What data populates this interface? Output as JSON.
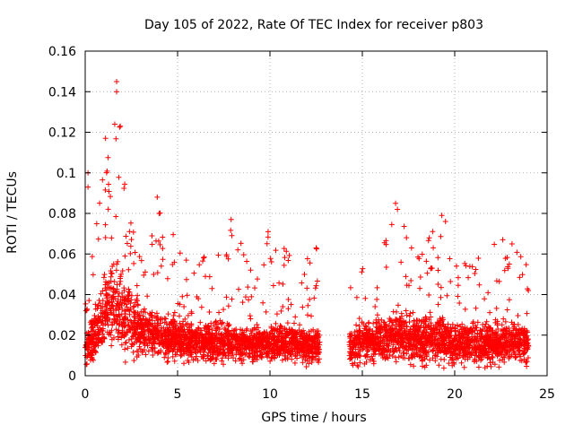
{
  "chart_data": {
    "type": "scatter",
    "title": "Day 105 of 2022, Rate Of TEC Index for receiver p803",
    "xlabel": "GPS time / hours",
    "ylabel": "ROTI / TECUs",
    "xlim": [
      0,
      25
    ],
    "ylim": [
      0,
      0.16
    ],
    "x_ticks": [
      0,
      5,
      10,
      15,
      20,
      25
    ],
    "x_tick_labels": [
      "0",
      "5",
      "10",
      "15",
      "20",
      "25"
    ],
    "y_ticks": [
      0,
      0.02,
      0.04,
      0.06,
      0.08,
      0.1,
      0.12,
      0.14,
      0.16
    ],
    "y_tick_labels": [
      "0",
      "0.02",
      "0.04",
      "0.06",
      "0.08",
      "0.1",
      "0.12",
      "0.14",
      "0.16"
    ],
    "grid": true,
    "marker": "plus",
    "color": "#ff0000",
    "data_gap_hours": [
      12.7,
      14.3
    ],
    "envelope": [
      {
        "x": 0.0,
        "base": 0.014,
        "spread": 0.012,
        "peak": 0.045
      },
      {
        "x": 0.5,
        "base": 0.02,
        "spread": 0.018,
        "peak": 0.065
      },
      {
        "x": 1.0,
        "base": 0.03,
        "spread": 0.025,
        "peak": 0.11
      },
      {
        "x": 1.5,
        "base": 0.035,
        "spread": 0.03,
        "peak": 0.125
      },
      {
        "x": 1.75,
        "base": 0.035,
        "spread": 0.03,
        "peak": 0.145
      },
      {
        "x": 2.2,
        "base": 0.03,
        "spread": 0.025,
        "peak": 0.09
      },
      {
        "x": 3.0,
        "base": 0.022,
        "spread": 0.018,
        "peak": 0.06
      },
      {
        "x": 4.0,
        "base": 0.02,
        "spread": 0.016,
        "peak": 0.088
      },
      {
        "x": 5.0,
        "base": 0.018,
        "spread": 0.014,
        "peak": 0.065
      },
      {
        "x": 6.0,
        "base": 0.017,
        "spread": 0.013,
        "peak": 0.055
      },
      {
        "x": 7.0,
        "base": 0.017,
        "spread": 0.013,
        "peak": 0.072
      },
      {
        "x": 8.0,
        "base": 0.016,
        "spread": 0.013,
        "peak": 0.077
      },
      {
        "x": 9.0,
        "base": 0.016,
        "spread": 0.012,
        "peak": 0.057
      },
      {
        "x": 10.0,
        "base": 0.016,
        "spread": 0.012,
        "peak": 0.072
      },
      {
        "x": 11.0,
        "base": 0.016,
        "spread": 0.013,
        "peak": 0.06
      },
      {
        "x": 12.0,
        "base": 0.015,
        "spread": 0.013,
        "peak": 0.063
      },
      {
        "x": 12.7,
        "base": 0.015,
        "spread": 0.012,
        "peak": 0.063
      },
      {
        "x": 14.3,
        "base": 0.015,
        "spread": 0.012,
        "peak": 0.057
      },
      {
        "x": 15.0,
        "base": 0.017,
        "spread": 0.014,
        "peak": 0.072
      },
      {
        "x": 16.0,
        "base": 0.018,
        "spread": 0.015,
        "peak": 0.068
      },
      {
        "x": 16.8,
        "base": 0.02,
        "spread": 0.017,
        "peak": 0.085
      },
      {
        "x": 18.0,
        "base": 0.018,
        "spread": 0.016,
        "peak": 0.06
      },
      {
        "x": 19.3,
        "base": 0.018,
        "spread": 0.016,
        "peak": 0.079
      },
      {
        "x": 20.0,
        "base": 0.016,
        "spread": 0.014,
        "peak": 0.058
      },
      {
        "x": 21.0,
        "base": 0.016,
        "spread": 0.014,
        "peak": 0.055
      },
      {
        "x": 22.0,
        "base": 0.016,
        "spread": 0.014,
        "peak": 0.067
      },
      {
        "x": 23.0,
        "base": 0.017,
        "spread": 0.015,
        "peak": 0.065
      },
      {
        "x": 24.0,
        "base": 0.016,
        "spread": 0.014,
        "peak": 0.062
      }
    ],
    "notable_points": [
      {
        "x": 1.7,
        "y": 0.145
      },
      {
        "x": 1.7,
        "y": 0.14
      },
      {
        "x": 1.6,
        "y": 0.124
      },
      {
        "x": 1.9,
        "y": 0.123
      },
      {
        "x": 1.1,
        "y": 0.117
      },
      {
        "x": 0.15,
        "y": 0.1
      },
      {
        "x": 0.15,
        "y": 0.093
      },
      {
        "x": 3.9,
        "y": 0.088
      },
      {
        "x": 4.0,
        "y": 0.08
      },
      {
        "x": 7.9,
        "y": 0.077
      },
      {
        "x": 9.9,
        "y": 0.071
      },
      {
        "x": 12.5,
        "y": 0.063
      },
      {
        "x": 16.8,
        "y": 0.085
      },
      {
        "x": 16.9,
        "y": 0.082
      },
      {
        "x": 19.3,
        "y": 0.079
      },
      {
        "x": 19.5,
        "y": 0.076
      },
      {
        "x": 22.6,
        "y": 0.067
      },
      {
        "x": 23.1,
        "y": 0.065
      }
    ]
  }
}
